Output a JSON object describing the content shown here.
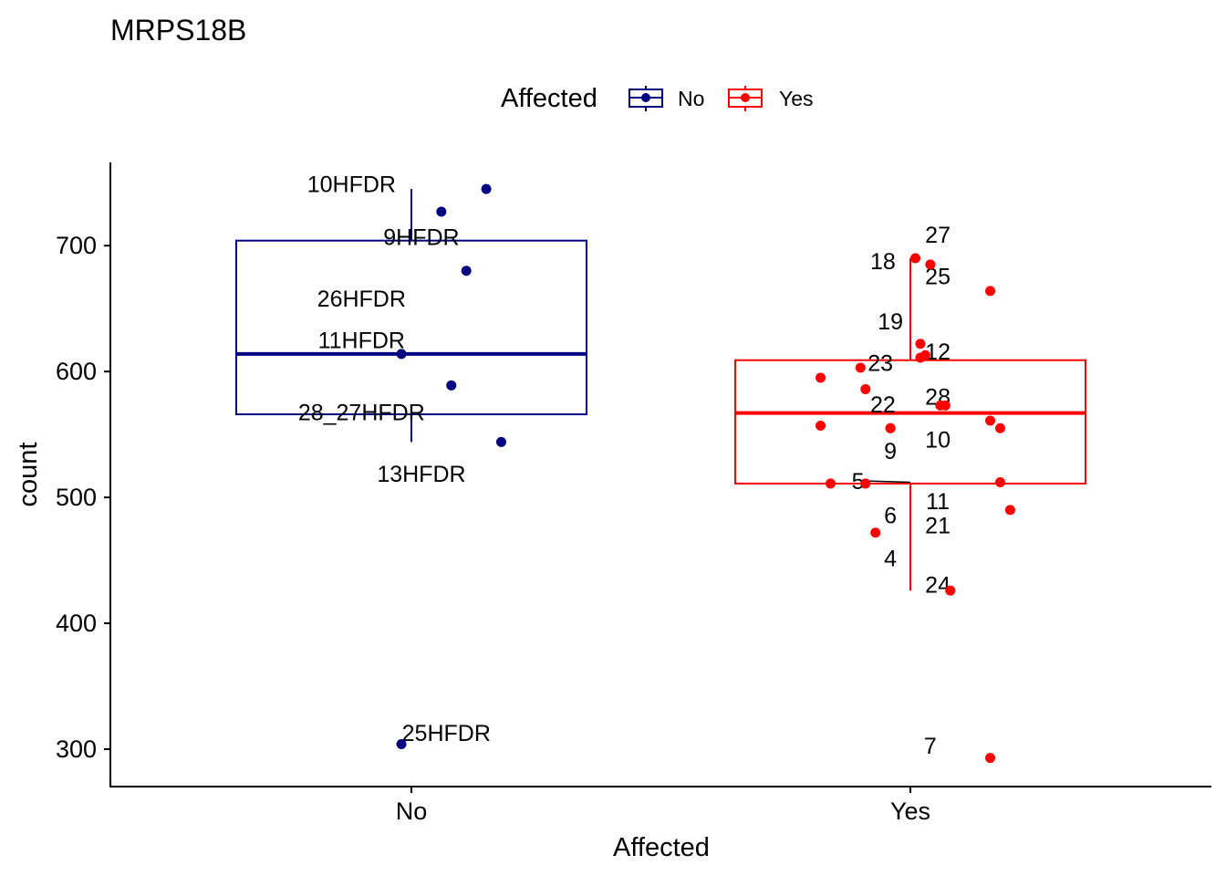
{
  "chart_data": {
    "type": "box",
    "title": "MRPS18B",
    "xlabel": "Affected",
    "ylabel": "count",
    "categories": [
      "No",
      "Yes"
    ],
    "ylim": [
      258,
      768
    ],
    "yticks": [
      300,
      400,
      500,
      600,
      700
    ],
    "legend": {
      "title": "Affected",
      "position": "top",
      "entries": [
        {
          "label": "No",
          "color": "#000080"
        },
        {
          "label": "Yes",
          "color": "#ff0000"
        }
      ]
    },
    "boxes": [
      {
        "category": "No",
        "color": "#000080",
        "q1": 566,
        "median": 614,
        "q3": 704,
        "whisker_low": 544,
        "whisker_high": 745
      },
      {
        "category": "Yes",
        "color": "#ff0000",
        "q1": 511,
        "median": 567,
        "q3": 609,
        "whisker_low": 426,
        "whisker_high": 690
      }
    ],
    "series": [
      {
        "name": "No",
        "color": "#000080",
        "points": [
          {
            "label": "10HFDR",
            "jitter": 0.15,
            "y": 745,
            "lx": -0.12,
            "ly": 749
          },
          {
            "label": "9HFDR",
            "jitter": 0.06,
            "y": 727,
            "lx": 0.02,
            "ly": 707
          },
          {
            "label": "26HFDR",
            "jitter": 0.11,
            "y": 680,
            "lx": -0.1,
            "ly": 658
          },
          {
            "label": "11HFDR",
            "jitter": -0.02,
            "y": 614,
            "lx": -0.1,
            "ly": 625
          },
          {
            "label": "28_27HFDR",
            "jitter": 0.08,
            "y": 589,
            "lx": -0.1,
            "ly": 568
          },
          {
            "label": "13HFDR",
            "jitter": 0.18,
            "y": 544,
            "lx": 0.02,
            "ly": 519
          },
          {
            "label": "25HFDR",
            "jitter": -0.02,
            "y": 304,
            "lx": 0.07,
            "ly": 313
          }
        ]
      },
      {
        "name": "Yes",
        "color": "#ff0000",
        "points": [
          {
            "label": "27",
            "jitter": 0.01,
            "y": 690,
            "lx": 0.055,
            "ly": 709
          },
          {
            "label": "25",
            "jitter": 0.04,
            "y": 685,
            "lx": 0.055,
            "ly": 676
          },
          {
            "label": "18",
            "jitter": 0.16,
            "y": 664,
            "lx": -0.055,
            "ly": 688
          },
          {
            "label": "19",
            "jitter": 0.02,
            "y": 622,
            "lx": -0.04,
            "ly": 640
          },
          {
            "label": "12",
            "jitter": 0.03,
            "y": 613,
            "lx": 0.055,
            "ly": 616
          },
          {
            "label": "23",
            "jitter": 0.02,
            "y": 611,
            "lx": -0.06,
            "ly": 607
          },
          {
            "label": "28",
            "jitter": -0.1,
            "y": 603,
            "lx": 0.055,
            "ly": 580
          },
          {
            "label": "22",
            "jitter": -0.18,
            "y": 595,
            "lx": -0.055,
            "ly": 574
          },
          {
            "label": "",
            "jitter": -0.09,
            "y": 586,
            "lx": 0,
            "ly": 0
          },
          {
            "label": "",
            "jitter": 0.06,
            "y": 573,
            "lx": 0,
            "ly": 0
          },
          {
            "label": "",
            "jitter": 0.07,
            "y": 573,
            "lx": 0,
            "ly": 0
          },
          {
            "label": "10",
            "jitter": 0.16,
            "y": 561,
            "lx": 0.055,
            "ly": 546
          },
          {
            "label": "",
            "jitter": -0.18,
            "y": 557,
            "lx": 0,
            "ly": 0
          },
          {
            "label": "",
            "jitter": -0.04,
            "y": 555,
            "lx": 0,
            "ly": 0
          },
          {
            "label": "",
            "jitter": 0.18,
            "y": 555,
            "lx": 0,
            "ly": 0
          },
          {
            "label": "9",
            "jitter": -0.04,
            "y": 555,
            "lx": -0.04,
            "ly": 537
          },
          {
            "label": "11",
            "jitter": 0.18,
            "y": 512,
            "lx": 0.055,
            "ly": 497
          },
          {
            "label": "5",
            "jitter": -0.16,
            "y": 511,
            "lx": -0.105,
            "ly": 513
          },
          {
            "label": "6",
            "jitter": -0.09,
            "y": 511,
            "lx": -0.04,
            "ly": 486
          },
          {
            "label": "21",
            "jitter": 0.2,
            "y": 490,
            "lx": 0.055,
            "ly": 478
          },
          {
            "label": "4",
            "jitter": -0.07,
            "y": 472,
            "lx": -0.04,
            "ly": 452
          },
          {
            "label": "24",
            "jitter": 0.08,
            "y": 426,
            "lx": 0.055,
            "ly": 431
          },
          {
            "label": "7",
            "jitter": 0.16,
            "y": 293,
            "lx": 0.04,
            "ly": 303
          }
        ]
      }
    ]
  }
}
